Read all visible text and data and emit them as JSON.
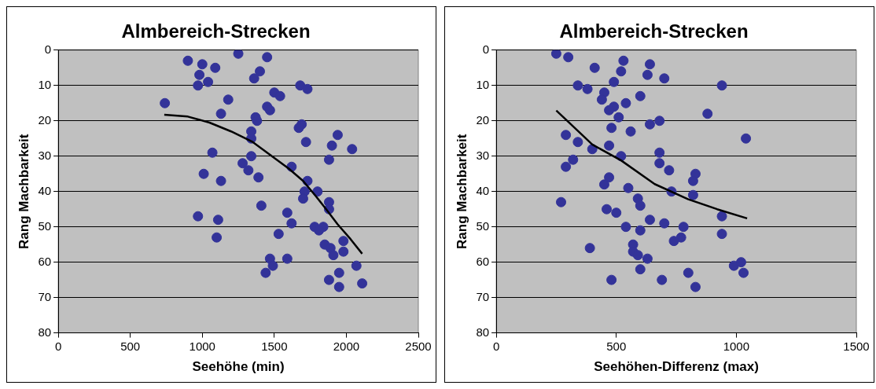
{
  "chart_data": [
    {
      "type": "scatter",
      "title": "Almbereich-Strecken",
      "xlabel": "Seehöhe (min)",
      "ylabel": "Rang Machbarkeit",
      "xlim": [
        0,
        2500
      ],
      "xticks": [
        0,
        500,
        1000,
        1500,
        2000,
        2500
      ],
      "ylim": [
        80,
        0
      ],
      "yticks": [
        0,
        10,
        20,
        30,
        40,
        50,
        60,
        70,
        80
      ],
      "grid": "y",
      "legend": false,
      "marker": "circle",
      "series": [
        {
          "color": "#333399",
          "x": [
            900,
            1000,
            1090,
            980,
            970,
            1040,
            1250,
            1450,
            1400,
            1360,
            1680,
            1730,
            1500,
            1540,
            740,
            1180,
            1130,
            1450,
            1470,
            1370,
            1380,
            1690,
            1670,
            1340,
            1340,
            1720,
            1940,
            1900,
            2040,
            1880,
            1070,
            1340,
            1010,
            1130,
            1280,
            1320,
            1390,
            1620,
            1730,
            1800,
            1710,
            1700,
            1880,
            1880,
            1410,
            1590,
            1620,
            970,
            1110,
            1100,
            1530,
            1780,
            1840,
            1810,
            1980,
            1980,
            1850,
            1890,
            1910,
            1470,
            1490,
            1590,
            1440,
            1880,
            1950,
            1950,
            2070,
            2110
          ],
          "values": [
            3,
            4,
            5,
            7,
            10,
            9,
            1,
            2,
            6,
            8,
            10,
            11,
            12,
            13,
            15,
            14,
            18,
            16,
            17,
            19,
            20,
            21,
            22,
            23,
            25,
            26,
            24,
            27,
            28,
            31,
            29,
            30,
            35,
            37,
            32,
            34,
            36,
            33,
            37,
            40,
            40,
            42,
            43,
            45,
            44,
            46,
            49,
            47,
            48,
            53,
            52,
            50,
            50,
            51,
            54,
            57,
            55,
            56,
            58,
            59,
            61,
            59,
            63,
            65,
            63,
            67,
            61,
            66
          ]
        },
        {
          "type": "line",
          "marker": "none",
          "color": "#000000",
          "x": [
            736,
            900,
            1050,
            1200,
            1350,
            1500,
            1600,
            1700,
            1790,
            1860,
            1940,
            2030,
            2110
          ],
          "values": [
            18.3,
            18.8,
            20.5,
            23,
            26,
            30.5,
            33.5,
            37,
            41.4,
            45,
            49.3,
            53.5,
            57.6
          ]
        }
      ]
    },
    {
      "type": "scatter",
      "title": "Almbereich-Strecken",
      "xlabel": "Seehöhen-Differenz (max)",
      "ylabel": "Rang Machbarkeit",
      "xlim": [
        0,
        1500
      ],
      "xticks": [
        0,
        500,
        1000,
        1500
      ],
      "ylim": [
        80,
        0
      ],
      "yticks": [
        0,
        10,
        20,
        30,
        40,
        50,
        60,
        70,
        80
      ],
      "grid": "y",
      "legend": false,
      "marker": "circle",
      "series": [
        {
          "color": "#333399",
          "x": [
            250,
            300,
            410,
            530,
            520,
            640,
            630,
            700,
            340,
            380,
            490,
            450,
            440,
            490,
            470,
            540,
            600,
            510,
            940,
            880,
            640,
            680,
            480,
            560,
            1040,
            290,
            340,
            400,
            470,
            520,
            320,
            290,
            680,
            680,
            720,
            830,
            820,
            470,
            450,
            550,
            730,
            820,
            270,
            460,
            500,
            590,
            600,
            640,
            540,
            600,
            700,
            780,
            770,
            740,
            940,
            940,
            390,
            570,
            570,
            590,
            630,
            600,
            480,
            690,
            800,
            830,
            990,
            1020,
            1030
          ],
          "values": [
            1,
            2,
            5,
            3,
            6,
            4,
            7,
            8,
            10,
            11,
            9,
            12,
            14,
            16,
            17,
            15,
            13,
            19,
            10,
            18,
            21,
            20,
            22,
            23,
            25,
            24,
            26,
            28,
            27,
            30,
            31,
            33,
            29,
            32,
            34,
            35,
            37,
            36,
            38,
            39,
            40,
            41,
            43,
            45,
            46,
            42,
            44,
            48,
            50,
            51,
            49,
            50,
            53,
            54,
            47,
            52,
            56,
            55,
            57,
            58,
            59,
            62,
            65,
            65,
            63,
            67,
            61,
            60,
            63
          ]
        },
        {
          "type": "line",
          "marker": "none",
          "color": "#000000",
          "x": [
            250,
            310,
            400,
            520,
            660,
            800,
            920,
            1045
          ],
          "values": [
            17.1,
            20.9,
            26.7,
            31.2,
            37.9,
            42.2,
            45,
            47.6
          ]
        }
      ]
    }
  ]
}
